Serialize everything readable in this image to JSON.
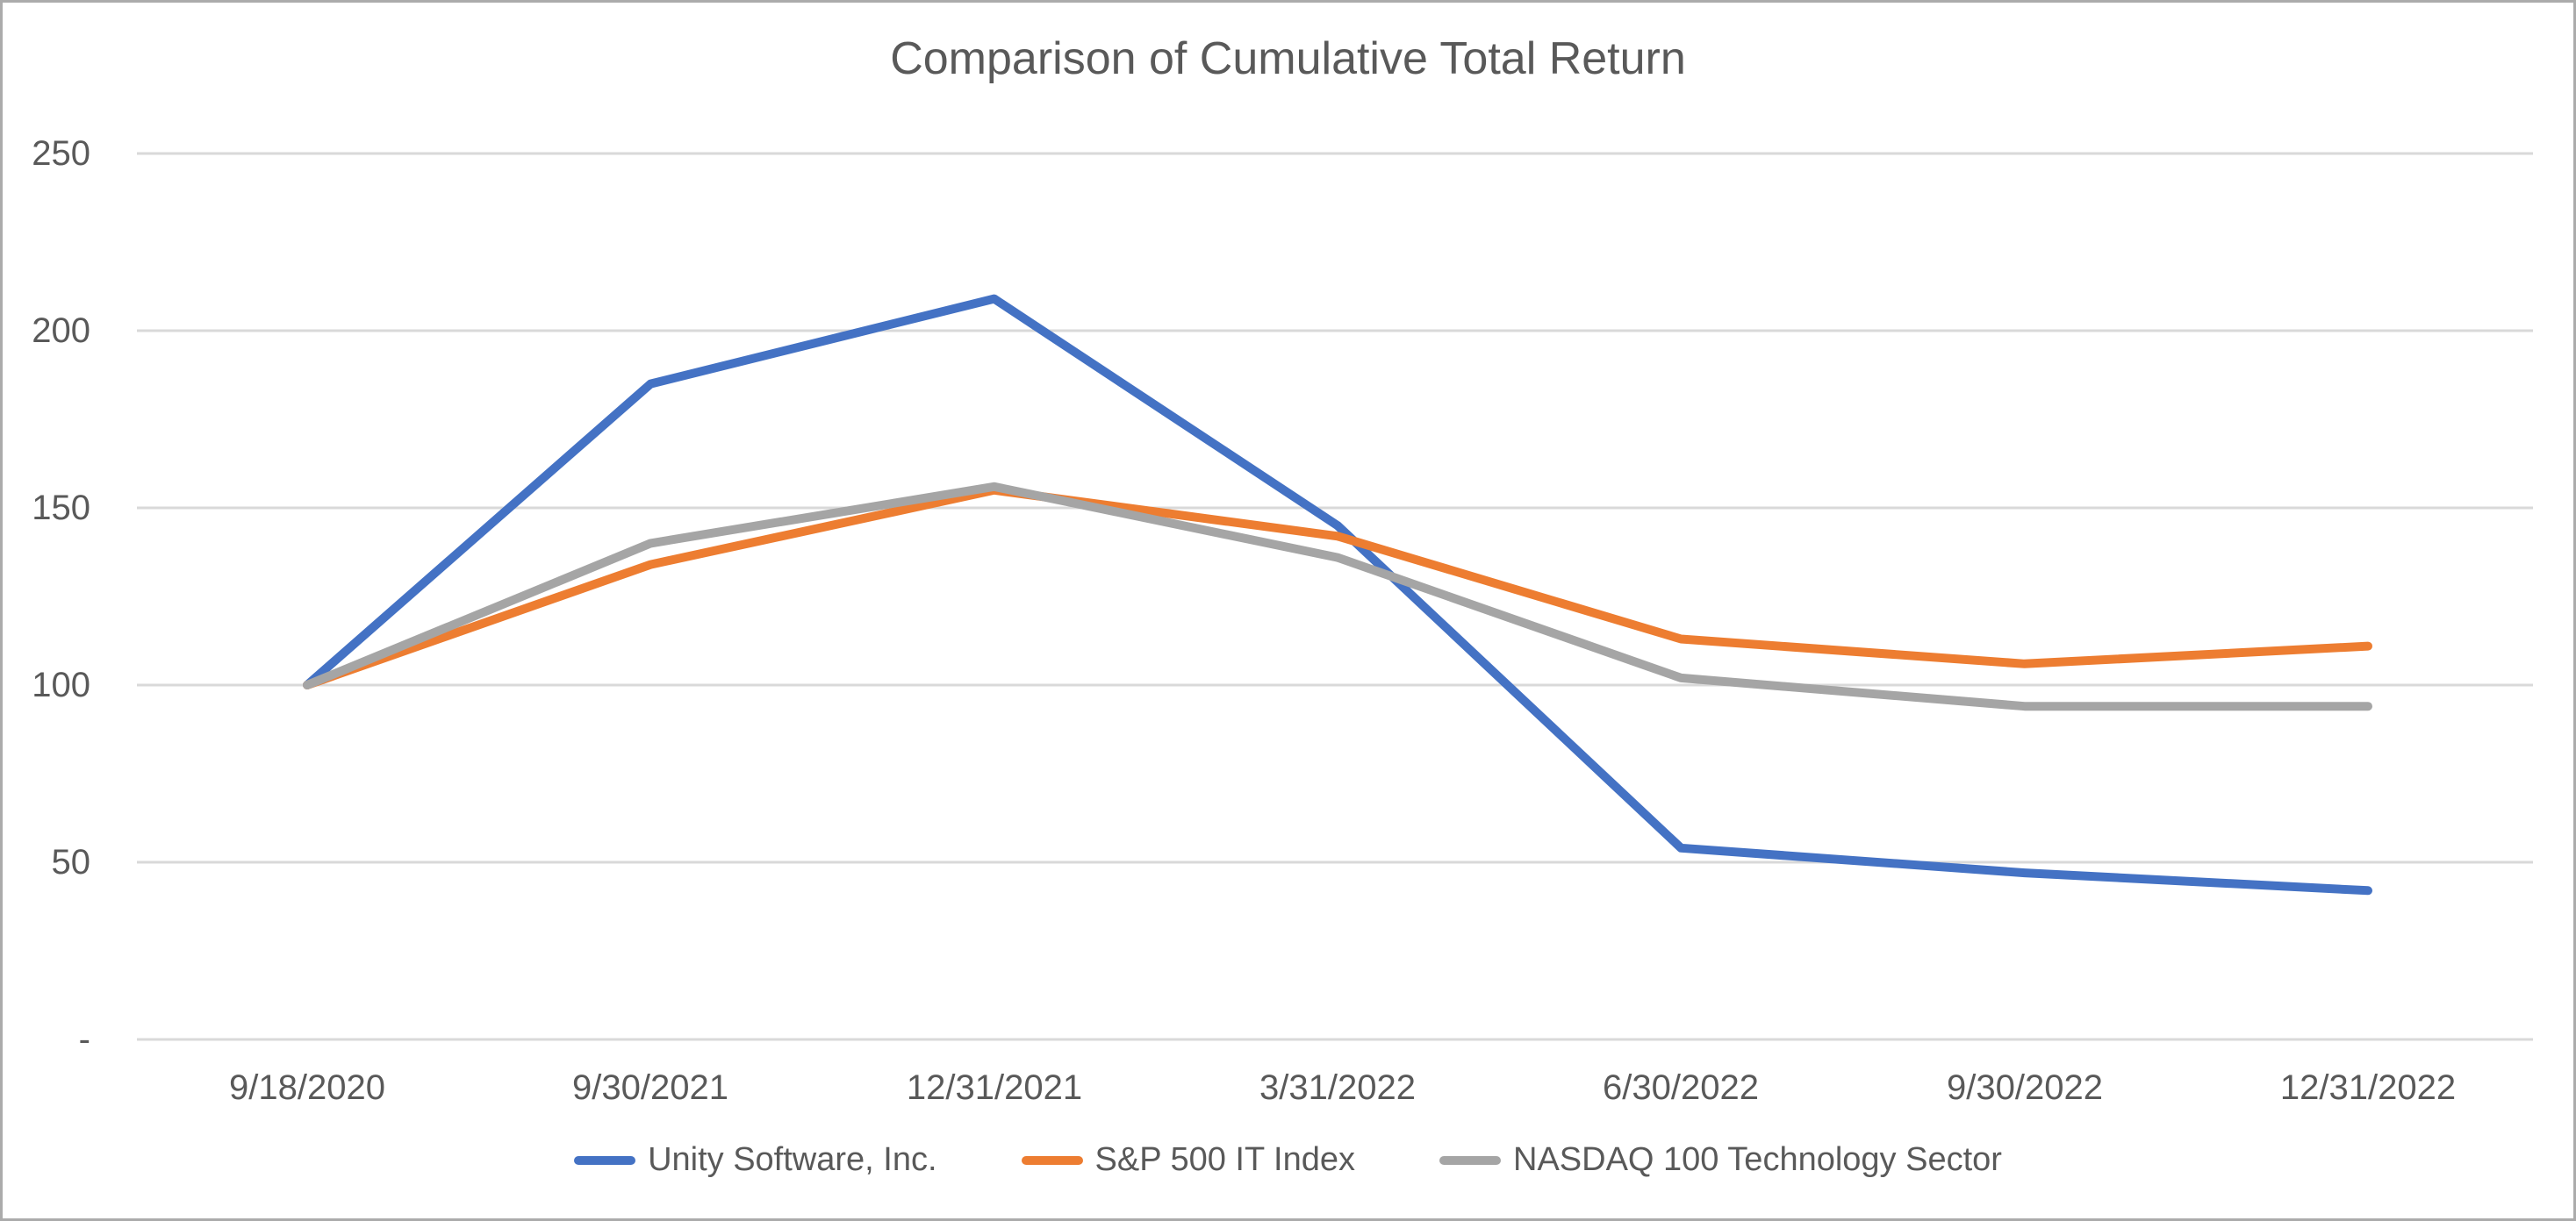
{
  "title": "Comparison of Cumulative Total Return",
  "colors": {
    "unity_blue": "#4472C4",
    "sp500_orange": "#ED7D31",
    "nasdaq_gray": "#A5A5A5",
    "gridline": "#D9D9D9",
    "text": "#595959",
    "frame_border": "#ABABAB"
  },
  "chart_data": {
    "type": "line",
    "title": "Comparison of Cumulative Total Return",
    "categories": [
      "9/18/2020",
      "9/30/2021",
      "12/31/2021",
      "3/31/2022",
      "6/30/2022",
      "9/30/2022",
      "12/31/2022"
    ],
    "series": [
      {
        "name": "Unity Software, Inc.",
        "color": "#4472C4",
        "values": [
          100,
          185,
          209,
          145,
          54,
          47,
          42
        ]
      },
      {
        "name": "S&P 500 IT Index",
        "color": "#ED7D31",
        "values": [
          100,
          134,
          155,
          142,
          113,
          106,
          111
        ]
      },
      {
        "name": "NASDAQ 100 Technology Sector",
        "color": "#A5A5A5",
        "values": [
          100,
          140,
          156,
          136,
          102,
          94,
          94
        ]
      }
    ],
    "xlabel": "",
    "ylabel": "",
    "ylim": [
      0,
      250
    ],
    "y_ticks": [
      250,
      200,
      150,
      100,
      50,
      0
    ],
    "y_tick_labels": [
      "250",
      "200",
      "150",
      "100",
      "50",
      "-"
    ],
    "grid": true,
    "legend_position": "bottom"
  }
}
